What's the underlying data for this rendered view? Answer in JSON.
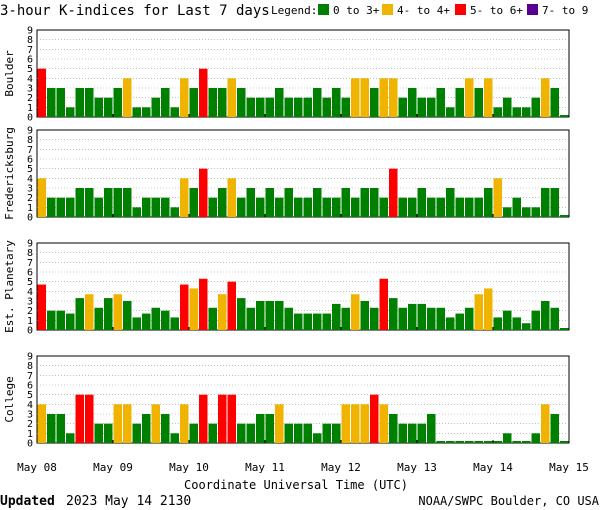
{
  "chart_data": {
    "type": "bar",
    "title": "3-hour K-indices for Last 7 days",
    "legend_title": "Legend:",
    "legend": [
      {
        "label": "0 to 3+",
        "color": "#008000"
      },
      {
        "label": "4- to 4+",
        "color": "#f0b400"
      },
      {
        "label": "5- to 6+",
        "color": "#ff0000"
      },
      {
        "label": "7- to 9",
        "color": "#5a0090"
      }
    ],
    "xlabel": "Coordinate Universal Time (UTC)",
    "x_ticks": [
      "May 08",
      "May 09",
      "May 10",
      "May 11",
      "May 12",
      "May 13",
      "May 14",
      "May 15"
    ],
    "ylim": [
      0,
      9
    ],
    "y_ticks": [
      "0",
      "1",
      "2",
      "3",
      "4",
      "5",
      "6",
      "7",
      "8",
      "9"
    ],
    "grid": "horizontal dotted",
    "panels": [
      {
        "ylabel": "Boulder",
        "values": [
          5,
          3,
          3,
          1,
          3,
          3,
          2,
          2,
          3,
          4,
          1,
          1,
          2,
          3,
          1,
          4,
          3,
          5,
          3,
          3,
          4,
          3,
          2,
          2,
          2,
          3,
          2,
          2,
          2,
          3,
          2,
          3,
          2,
          4,
          4,
          3,
          4,
          4,
          2,
          3,
          2,
          2,
          3,
          1,
          3,
          4,
          3,
          4,
          1,
          2,
          1,
          1,
          2,
          4,
          3,
          0
        ]
      },
      {
        "ylabel": "Fredericksburg",
        "values": [
          4,
          2,
          2,
          2,
          3,
          3,
          2,
          3,
          3,
          3,
          1,
          2,
          2,
          2,
          1,
          4,
          3,
          5,
          2,
          3,
          4,
          2,
          3,
          2,
          3,
          2,
          3,
          2,
          2,
          3,
          2,
          2,
          3,
          2,
          3,
          3,
          2,
          5,
          2,
          2,
          3,
          2,
          2,
          3,
          2,
          2,
          2,
          3,
          4,
          1,
          2,
          1,
          1,
          3,
          3,
          0
        ]
      },
      {
        "ylabel": "Est. Planetary",
        "values": [
          4.7,
          2,
          2,
          1.7,
          3.3,
          3.7,
          2.3,
          3.3,
          3.7,
          3,
          1.3,
          1.7,
          2.3,
          2,
          1.3,
          4.7,
          4.3,
          5.3,
          2.3,
          3.7,
          5,
          3.3,
          2.3,
          3,
          3,
          3,
          2.3,
          1.7,
          1.7,
          1.7,
          1.7,
          2.7,
          2.3,
          3.7,
          3,
          2.3,
          5.3,
          3.3,
          2.3,
          2.7,
          2.7,
          2.3,
          2.3,
          1.3,
          1.7,
          2.3,
          3.7,
          4.3,
          1.3,
          2,
          1.3,
          0.7,
          2,
          3,
          2.3,
          0
        ]
      },
      {
        "ylabel": "College",
        "values": [
          4,
          3,
          3,
          1,
          5,
          5,
          2,
          2,
          4,
          4,
          2,
          3,
          4,
          3,
          1,
          4,
          2,
          5,
          2,
          5,
          5,
          2,
          2,
          3,
          3,
          4,
          2,
          2,
          2,
          1,
          2,
          2,
          4,
          4,
          4,
          5,
          4,
          3,
          2,
          2,
          2,
          3,
          0,
          0,
          0,
          0,
          0,
          0,
          0,
          1,
          0,
          0,
          1,
          4,
          3,
          0
        ]
      }
    ]
  },
  "footer": {
    "updated_label": "Updated",
    "updated_value": "2023 May 14 2130",
    "source": "NOAA/SWPC Boulder, CO USA"
  }
}
